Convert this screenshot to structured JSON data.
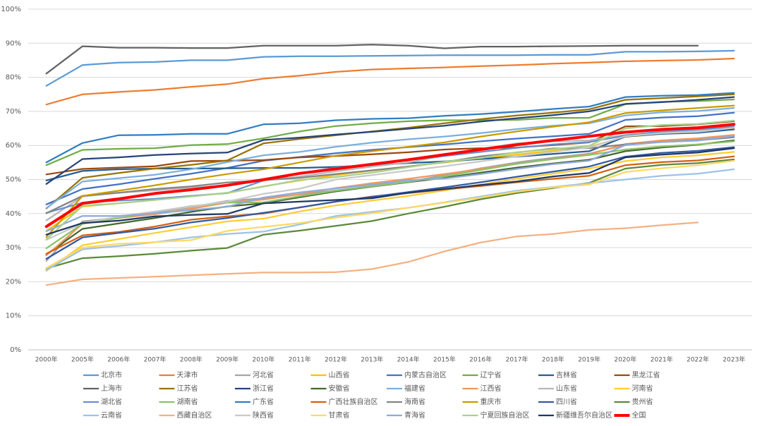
{
  "chart_data": {
    "type": "line",
    "categories": [
      "2000年",
      "2005年",
      "2006年",
      "2007年",
      "2008年",
      "2009年",
      "2010年",
      "2011年",
      "2012年",
      "2013年",
      "2014年",
      "2015年",
      "2016年",
      "2017年",
      "2018年",
      "2019年",
      "2020年",
      "2021年",
      "2022年",
      "2023年"
    ],
    "ylim": [
      0,
      100
    ],
    "yticks": [
      {
        "value": 0,
        "label": "0%"
      },
      {
        "value": 10,
        "label": "10%"
      },
      {
        "value": 20,
        "label": "20%"
      },
      {
        "value": 30,
        "label": "30%"
      },
      {
        "value": 40,
        "label": "40%"
      },
      {
        "value": 50,
        "label": "50%"
      },
      {
        "value": 60,
        "label": "60%"
      },
      {
        "value": 70,
        "label": "70%"
      },
      {
        "value": 80,
        "label": "80%"
      },
      {
        "value": 90,
        "label": "90%"
      },
      {
        "value": 100,
        "label": "100%"
      }
    ],
    "grid": true,
    "legend": "bottom",
    "series": [
      {
        "name": "北京市",
        "color": "#5B9BD5",
        "values": [
          77.5,
          83.6,
          84.3,
          84.5,
          85.0,
          85.0,
          86.0,
          86.2,
          86.2,
          86.3,
          86.4,
          86.5,
          86.5,
          86.5,
          86.6,
          86.6,
          87.5,
          87.5,
          87.6,
          87.8
        ]
      },
      {
        "name": "天津市",
        "color": "#ED7D31",
        "values": [
          72,
          75,
          75.7,
          76.3,
          77.2,
          78,
          79.6,
          80.5,
          81.6,
          82.3,
          82.6,
          82.9,
          83.3,
          83.6,
          84,
          84.3,
          84.7,
          84.9,
          85.1,
          85.5
        ]
      },
      {
        "name": "河北省",
        "color": "#A5A5A5",
        "values": [
          26.1,
          37.7,
          38.8,
          40.3,
          41.9,
          43.7,
          44.5,
          45.6,
          46.8,
          48.1,
          49.3,
          51.3,
          53.3,
          55,
          56.4,
          57.6,
          60.1,
          61.1,
          61.7,
          62.8
        ]
      },
      {
        "name": "山西省",
        "color": "#FFC000",
        "values": [
          34.9,
          42.1,
          43,
          44,
          45.1,
          46,
          48,
          49.7,
          51.3,
          52.6,
          53.8,
          55,
          56.2,
          57.3,
          58.4,
          59.6,
          62.5,
          63.4,
          63.9,
          64.9
        ]
      },
      {
        "name": "内蒙古自治区",
        "color": "#4472C4",
        "values": [
          42.7,
          47.2,
          48.6,
          50.2,
          51.7,
          53.4,
          55.5,
          56.6,
          57.7,
          58.7,
          59.5,
          60.3,
          61.2,
          62,
          62.7,
          63.4,
          67.5,
          68.2,
          68.6,
          69.6
        ]
      },
      {
        "name": "辽宁省",
        "color": "#70AD47",
        "values": [
          54.2,
          58.7,
          59,
          59.2,
          60.1,
          60.4,
          62.1,
          64.1,
          65.7,
          66.5,
          67.1,
          67.4,
          67.4,
          67.5,
          68.1,
          68.1,
          72.1,
          72.8,
          73,
          73.5
        ]
      },
      {
        "name": "吉林省",
        "color": "#255E91",
        "values": [
          49.7,
          52.5,
          53,
          53.2,
          53.2,
          53.3,
          53.4,
          53.4,
          53.7,
          54.2,
          54.8,
          55.3,
          56,
          56.7,
          57.5,
          58.3,
          62.6,
          63.4,
          63.7,
          64.7
        ]
      },
      {
        "name": "黑龙江省",
        "color": "#9E480E",
        "values": [
          51.5,
          53.1,
          53.5,
          53.9,
          55.4,
          55.5,
          55.7,
          56.5,
          56.9,
          57.4,
          58,
          58.8,
          59.2,
          59.4,
          60.1,
          60.9,
          65.6,
          65.7,
          66.2,
          67.1
        ]
      },
      {
        "name": "上海市",
        "color": "#636363",
        "values": [
          81.1,
          89.1,
          88.7,
          88.7,
          88.6,
          88.6,
          89.3,
          89.3,
          89.3,
          89.6,
          89.3,
          88.5,
          89,
          89,
          89.1,
          89.2,
          89.3,
          89.3,
          89.3,
          null
        ]
      },
      {
        "name": "江苏省",
        "color": "#997300",
        "values": [
          41.5,
          50.5,
          51.9,
          53.2,
          54.3,
          55.6,
          60.6,
          61.9,
          63,
          64.1,
          65.2,
          66.5,
          67.7,
          68.8,
          69.6,
          70.6,
          73.4,
          73.9,
          74.4,
          75.0
        ]
      },
      {
        "name": "浙江省",
        "color": "#264478",
        "values": [
          48.7,
          56,
          56.5,
          57.2,
          57.6,
          57.9,
          61.6,
          62.3,
          63.2,
          64,
          64.9,
          65.8,
          67,
          68,
          68.9,
          70,
          72.2,
          72.7,
          73.4,
          74.2
        ]
      },
      {
        "name": "安徽省",
        "color": "#43682B",
        "values": [
          28,
          35.5,
          37.1,
          38.7,
          40.5,
          42.1,
          43,
          44.8,
          46.5,
          47.9,
          49.2,
          50.5,
          52,
          53.5,
          54.7,
          55.8,
          58.3,
          59.4,
          60.2,
          61.5
        ]
      },
      {
        "name": "福建省",
        "color": "#7CAFDD",
        "values": [
          41.6,
          49.4,
          50.4,
          51.4,
          53,
          55.1,
          57.1,
          58.1,
          59.6,
          60.8,
          61.8,
          62.6,
          63.6,
          64.8,
          65.8,
          66.5,
          68.8,
          69.7,
          70.1,
          71.0
        ]
      },
      {
        "name": "江西省",
        "color": "#F1975A",
        "values": [
          27.7,
          37,
          38.7,
          39.8,
          41.4,
          43.2,
          44.1,
          45.7,
          47.5,
          48.9,
          50.2,
          51.6,
          53.1,
          54.6,
          56,
          57.4,
          60.4,
          61.5,
          62.1,
          63.1
        ]
      },
      {
        "name": "山东省",
        "color": "#B7B7B7",
        "values": [
          38,
          45,
          46.1,
          46.8,
          47.6,
          48.3,
          49.7,
          50.9,
          52.4,
          53.8,
          55,
          57,
          59,
          60.6,
          61.2,
          61.5,
          63.1,
          63.9,
          64.5,
          65.5
        ]
      },
      {
        "name": "河南省",
        "color": "#FFCD33",
        "values": [
          23.2,
          30.7,
          32.5,
          34.3,
          36,
          37.7,
          38.5,
          40.6,
          42.4,
          43.8,
          45.2,
          46.8,
          48.5,
          50.2,
          51.7,
          53.2,
          55.4,
          56.5,
          57.1,
          58.1
        ]
      },
      {
        "name": "湖北省",
        "color": "#698ED0",
        "values": [
          40.2,
          43.2,
          43.8,
          44.3,
          45.2,
          46,
          49.7,
          51.8,
          53.5,
          54.5,
          55.7,
          56.9,
          58.1,
          59.3,
          60.3,
          61,
          62.9,
          64.1,
          64.7,
          65.5
        ]
      },
      {
        "name": "湖南省",
        "color": "#8CC168",
        "values": [
          29.8,
          37,
          38.7,
          40.5,
          42.2,
          43.2,
          43.3,
          45.1,
          46.7,
          48,
          49.3,
          50.9,
          52.8,
          54.6,
          56,
          57.2,
          58.8,
          59.7,
          60.3,
          61.2
        ]
      },
      {
        "name": "广东省",
        "color": "#327DC2",
        "values": [
          55,
          60.7,
          63,
          63.1,
          63.4,
          63.4,
          66.2,
          66.5,
          67.4,
          67.8,
          68,
          68.7,
          69.2,
          69.9,
          70.7,
          71.4,
          74.2,
          74.6,
          74.8,
          75.4
        ]
      },
      {
        "name": "广西壮族自治区",
        "color": "#D26012",
        "values": [
          28.2,
          33.6,
          34.6,
          36.2,
          38.2,
          39.2,
          40,
          41.8,
          43.5,
          45,
          46,
          47.1,
          48.1,
          49.2,
          50.2,
          51.1,
          54.2,
          55.1,
          55.6,
          56.8
        ]
      },
      {
        "name": "海南省",
        "color": "#848484",
        "values": [
          40.1,
          45.2,
          46.1,
          47.2,
          48,
          49.1,
          49.8,
          50.5,
          51.6,
          52.7,
          53.8,
          55.1,
          56.8,
          57.9,
          59.1,
          59.2,
          60.3,
          61,
          61.5,
          62.4
        ]
      },
      {
        "name": "重庆市",
        "color": "#CC9A00",
        "values": [
          33.1,
          45.2,
          46.7,
          48.3,
          50,
          51.6,
          53,
          55,
          57,
          58.3,
          59.6,
          60.9,
          62.6,
          64.1,
          65.5,
          66.8,
          69.5,
          70.3,
          71,
          71.7
        ]
      },
      {
        "name": "四川省",
        "color": "#335AA1",
        "values": [
          26.7,
          33,
          34.3,
          35.6,
          37.4,
          38.7,
          40.2,
          41.8,
          43.5,
          44.9,
          46.3,
          47.7,
          49.2,
          50.8,
          52.3,
          53.8,
          56.7,
          57.8,
          58.4,
          59.5
        ]
      },
      {
        "name": "贵州省",
        "color": "#5A8A39",
        "values": [
          23.9,
          26.9,
          27.5,
          28.2,
          29.1,
          29.9,
          33.8,
          35,
          36.4,
          37.8,
          40,
          42,
          44.2,
          46,
          47.5,
          49,
          53.2,
          54.3,
          54.8,
          55.9
        ]
      },
      {
        "name": "云南省",
        "color": "#9DC3E6",
        "values": [
          23.4,
          29.5,
          30.5,
          31.6,
          33,
          34,
          34.7,
          36.8,
          39.3,
          40.5,
          41.7,
          43.3,
          45,
          46.7,
          47.8,
          48.9,
          50,
          51.1,
          51.7,
          53.0
        ]
      },
      {
        "name": "西藏自治区",
        "color": "#F4B183",
        "values": [
          19,
          20.7,
          21.1,
          21.5,
          21.9,
          22.3,
          22.7,
          22.7,
          22.8,
          23.7,
          25.8,
          28.9,
          31.5,
          33.3,
          34,
          35.2,
          35.7,
          36.6,
          37.4,
          null
        ]
      },
      {
        "name": "陕西省",
        "color": "#C9C9C9",
        "values": [
          32.3,
          37.2,
          39.1,
          40.6,
          42.1,
          43.5,
          45.8,
          47.3,
          50,
          51.3,
          52.6,
          53.9,
          55.3,
          56.8,
          58.1,
          59.4,
          62.7,
          63.6,
          64,
          65.2
        ]
      },
      {
        "name": "甘肃省",
        "color": "#FFD966",
        "values": [
          24,
          30,
          31.1,
          31.6,
          32.2,
          34.9,
          36.1,
          37.2,
          38.8,
          40.1,
          41.7,
          43.2,
          44.7,
          46.4,
          47.7,
          48.5,
          52.2,
          53.3,
          54.2,
          55.5
        ]
      },
      {
        "name": "青海省",
        "color": "#8FAADC",
        "values": [
          34.8,
          39.3,
          39.3,
          40.1,
          41,
          42,
          44.7,
          46.2,
          47.4,
          48.5,
          49.8,
          50.3,
          51.6,
          53.1,
          54.5,
          55.5,
          60.1,
          61,
          61.4,
          62.8
        ]
      },
      {
        "name": "宁夏回族自治区",
        "color": "#A9D18E",
        "values": [
          32.4,
          42.3,
          43,
          44,
          45,
          46.1,
          47.9,
          49.9,
          50.7,
          52,
          53.6,
          55.2,
          56.3,
          58,
          58.9,
          59.9,
          65,
          66,
          66.3,
          67.3
        ]
      },
      {
        "name": "新疆维吾尔自治区",
        "color": "#203864",
        "values": [
          33.8,
          37.2,
          37.9,
          39.2,
          39.6,
          39.9,
          43,
          43.5,
          44,
          44.5,
          46.1,
          47.2,
          48.4,
          49.4,
          50.9,
          51.9,
          56.5,
          57.3,
          57.9,
          59.2
        ]
      },
      {
        "name": "全国",
        "color": "#FF0000",
        "values": [
          36.2,
          43,
          44.3,
          45.9,
          47,
          48.3,
          49.95,
          51.8,
          53.1,
          54.5,
          55.8,
          57.3,
          58.8,
          60.2,
          61.5,
          62.7,
          63.9,
          64.7,
          65.2,
          66.2
        ]
      }
    ]
  }
}
